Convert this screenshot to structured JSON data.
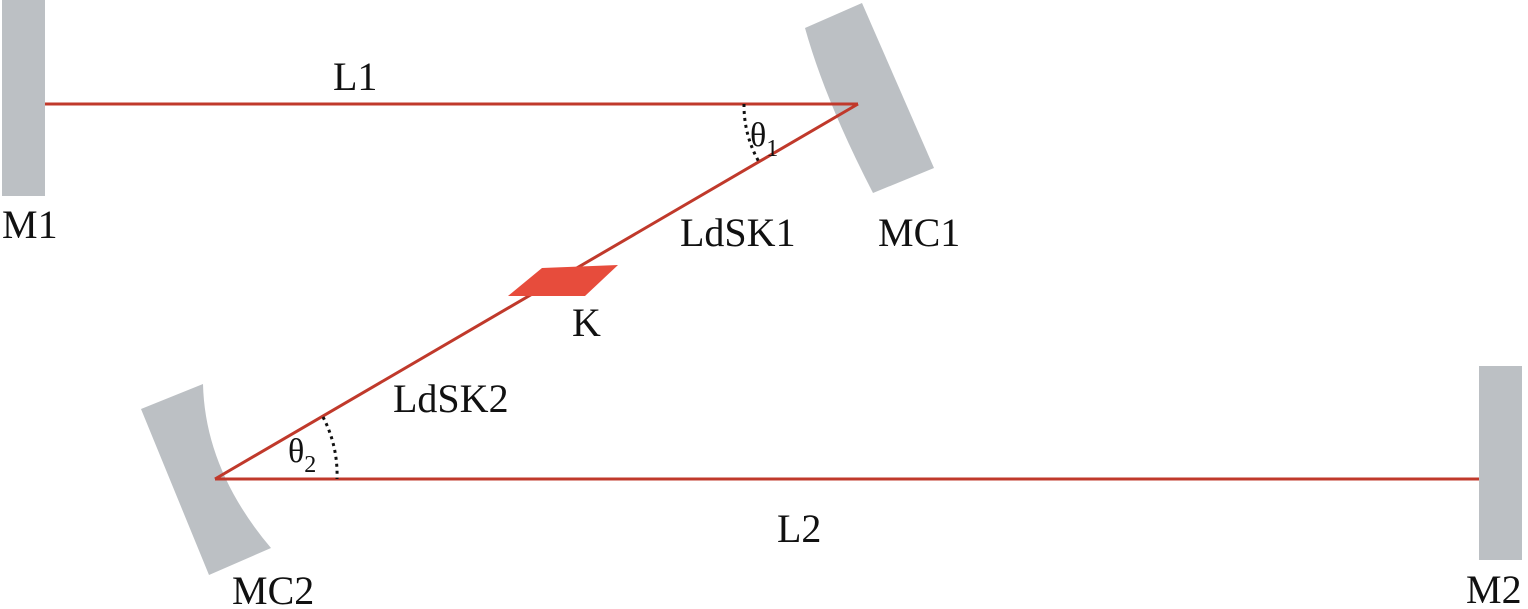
{
  "colors": {
    "beam": "#c0392b",
    "mirror": "#bcc0c4",
    "crystal": "#e74c3c",
    "text": "#111111"
  },
  "labels": {
    "m1": "M1",
    "m2": "M2",
    "mc1": "MC1",
    "mc2": "MC2",
    "l1": "L1",
    "l2": "L2",
    "ldsk1": "LdSK1",
    "ldsk2": "LdSK2",
    "k": "K",
    "theta_symbol": "θ",
    "theta1_sub": "1",
    "theta2_sub": "2"
  }
}
